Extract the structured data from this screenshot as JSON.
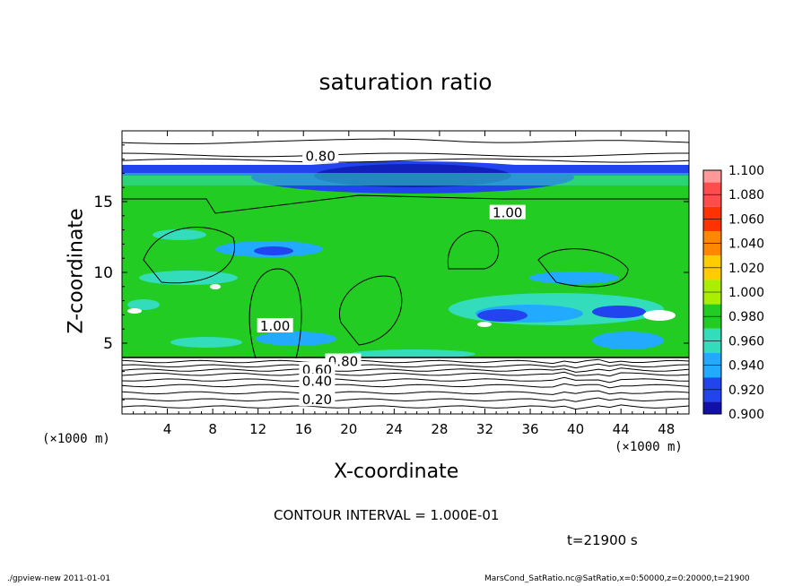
{
  "chart_data": {
    "type": "heatmap",
    "title": "saturation ratio",
    "xlabel": "X-coordinate",
    "ylabel": "Z-coordinate",
    "x_unit": "(×1000 m)",
    "y_unit": "(×1000 m)",
    "xlim": [
      0,
      50
    ],
    "ylim": [
      0,
      20
    ],
    "x_ticks": [
      4,
      8,
      12,
      16,
      20,
      24,
      28,
      32,
      36,
      40,
      44,
      48
    ],
    "y_ticks": [
      5,
      10,
      15
    ],
    "contour_labels": [
      {
        "text": "0.80",
        "x": 17.5,
        "z": 18.2
      },
      {
        "text": "1.00",
        "x": 34.0,
        "z": 14.2
      },
      {
        "text": "1.00",
        "x": 13.5,
        "z": 6.2
      },
      {
        "text": "0.80",
        "x": 19.5,
        "z": 3.7
      },
      {
        "text": "0.60",
        "x": 17.2,
        "z": 3.1
      },
      {
        "text": "0.40",
        "x": 17.2,
        "z": 2.3
      },
      {
        "text": "0.20",
        "x": 17.2,
        "z": 1.0
      }
    ],
    "colorbar": {
      "levels": [
        "1.100",
        "1.080",
        "1.060",
        "1.040",
        "1.020",
        "1.000",
        "0.980",
        "0.960",
        "0.940",
        "0.920",
        "0.900"
      ],
      "colors": [
        "#ff9999",
        "#ff4d4d",
        "#ff3300",
        "#ff8800",
        "#ffcc00",
        "#aaee00",
        "#22cc22",
        "#33ddbb",
        "#22aaff",
        "#2244ee",
        "#1111aa",
        "#6611aa"
      ]
    },
    "contour_interval": "CONTOUR INTERVAL = 1.000E-01",
    "time": "t=21900 s"
  },
  "footer": {
    "left": "./gpview-new   2011-01-01",
    "right": "MarsCond_SatRatio.nc@SatRatio,x=0:50000,z=0:20000,t=21900"
  }
}
